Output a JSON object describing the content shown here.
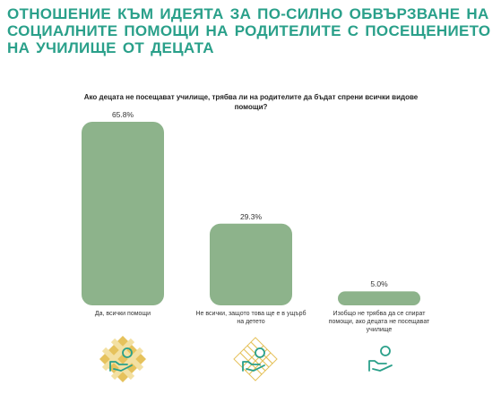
{
  "title": "ОТНОШЕНИЕ КЪМ ИДЕЯТА ЗА ПО-СИЛНО ОБВЪРЗВАНЕ НА СОЦИАЛНИТЕ ПОМОЩИ НА РОДИТЕЛИТЕ С ПОСЕЩЕНИЕТО НА УЧИЛИЩЕ ОТ ДЕЦАТА",
  "colors": {
    "title": "#2aa08a",
    "bar": "#8db38b",
    "icon_gold": "#e6c25c",
    "icon_teal": "#2aa08a"
  },
  "icons": [
    "hand-coin-icon",
    "hand-coin-icon",
    "hand-coin-icon"
  ],
  "chart_data": {
    "type": "bar",
    "title": "Ако децата не посещават училище, трябва ли на родителите да бъдат спрени всички видове помощи?",
    "categories": [
      "Да, всички помощи",
      "Не всички, защото това ще е в ущърб на детето",
      "Изобщо не трябва да се спират помощи, ако децата не посещават училище"
    ],
    "values": [
      65.8,
      29.3,
      5.0
    ],
    "value_labels": [
      "65.8%",
      "29.3%",
      "5.0%"
    ],
    "ylim": [
      0,
      65.8
    ],
    "grid": false,
    "legend": "none"
  }
}
